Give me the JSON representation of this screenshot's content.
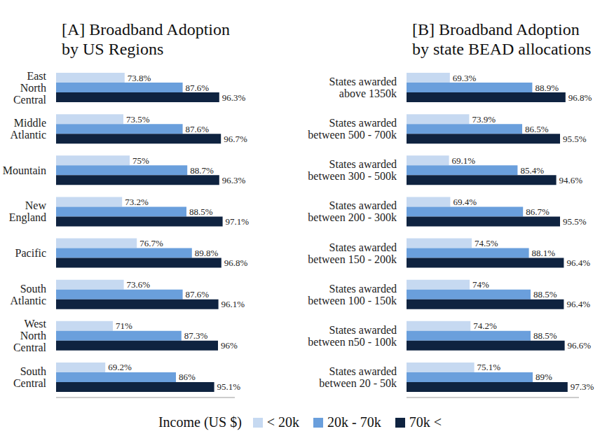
{
  "legend_title": "Income (US $)",
  "chart_data": [
    {
      "type": "bar",
      "title": "[A] Broadband Adoption\nby US Regions",
      "orientation": "horizontal",
      "data_labels": true,
      "tick_labels": "y",
      "legend": "bottom",
      "categories": [
        "East\nNorth\nCentral",
        "Middle\nAtlantic",
        "Mountain",
        "New\nEngland",
        "Pacific",
        "South\nAtlantic",
        "West\nNorth\nCentral",
        "South\nCentral"
      ],
      "xlim": [
        57.5,
        100
      ],
      "series": [
        {
          "name": "< 20k",
          "color": "#c6d9f1",
          "values": [
            73.8,
            73.5,
            75,
            73.2,
            76.7,
            73.6,
            71,
            69.2
          ],
          "value_labels": [
            "73.8%",
            "73.5%",
            "75%",
            "73.2%",
            "76.7%",
            "73.6%",
            "71%",
            "69.2%"
          ]
        },
        {
          "name": "20k - 70k",
          "color": "#6a9fdc",
          "values": [
            87.6,
            87.6,
            88.7,
            88.5,
            89.8,
            87.6,
            87.3,
            86
          ],
          "value_labels": [
            "87.6%",
            "87.6%",
            "88.7%",
            "88.5%",
            "89.8%",
            "87.6%",
            "87.3%",
            "86%"
          ]
        },
        {
          "name": "70k <",
          "color": "#0f2340",
          "values": [
            96.3,
            96.7,
            96.3,
            97.1,
            96.8,
            96.1,
            96,
            95.1
          ],
          "value_labels": [
            "96.3%",
            "96.7%",
            "96.3%",
            "97.1%",
            "96.8%",
            "96.1%",
            "96%",
            "95.1%"
          ]
        }
      ]
    },
    {
      "type": "bar",
      "title": "[B] Broadband Adoption\nby state BEAD allocations",
      "orientation": "horizontal",
      "data_labels": true,
      "tick_labels": "y",
      "legend": "bottom",
      "categories": [
        "States awarded\nabove 1350k",
        "States awarded\nbetween 500 - 700k",
        "States awarded\nbetween 300 - 500k",
        "States awarded\nbetween 200 - 300k",
        "States awarded\nbetween 150 - 200k",
        "States awarded\nbetween 100 - 150k",
        "States awarded\nbetween n50 - 100k",
        "States awarded\nbetween 20 - 50k"
      ],
      "xlim": [
        59,
        100
      ],
      "series": [
        {
          "name": "< 20k",
          "color": "#c6d9f1",
          "values": [
            69.3,
            73.9,
            69.1,
            69.4,
            74.5,
            74,
            74.2,
            75.1
          ],
          "value_labels": [
            "69.3%",
            "73.9%",
            "69.1%",
            "69.4%",
            "74.5%",
            "74%",
            "74.2%",
            "75.1%"
          ]
        },
        {
          "name": "20k - 70k",
          "color": "#6a9fdc",
          "values": [
            88.9,
            86.5,
            85.4,
            86.7,
            88.1,
            88.5,
            88.5,
            89
          ],
          "value_labels": [
            "88.9%",
            "86.5%",
            "85.4%",
            "86.7%",
            "88.1%",
            "88.5%",
            "88.5%",
            "89%"
          ]
        },
        {
          "name": "70k <",
          "color": "#0f2340",
          "values": [
            96.8,
            95.5,
            94.6,
            95.5,
            96.4,
            96.4,
            96.6,
            97.3
          ],
          "value_labels": [
            "96.8%",
            "95.5%",
            "94.6%",
            "95.5%",
            "96.4%",
            "96.4%",
            "96.6%",
            "97.3%"
          ]
        }
      ]
    }
  ]
}
